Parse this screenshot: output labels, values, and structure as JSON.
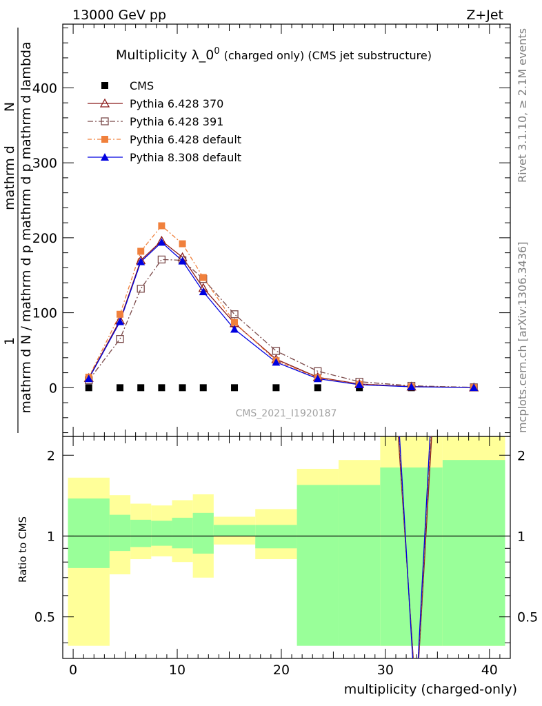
{
  "header": {
    "left_title": "13000 GeV pp",
    "right_title": "Z+Jet",
    "main_title": "Multiplicity λ_0",
    "main_title_sup": "0",
    "main_title_suffix": "(charged only) (CMS jet substructure)",
    "side_events": "Rivet 3.1.10, ≥ 2.1M events",
    "side_site": "mcplots.cern.ch [arXiv:1306.3436]",
    "watermark": "CMS_2021_I1920187"
  },
  "axes": {
    "xlabel": "multiplicity (charged-only)",
    "ylabel_top_line1": "1",
    "ylabel_top_line2": "mathrm d N / mathrm d p",
    "ylabel_top_line2b": "mathrm d p",
    "ylabel_top_line2c": "mathrm d lambda",
    "ylabel_top_num": "mathrm d",
    "ylabel_top_num2": "N",
    "ylabel_top_den": "mathrm d N / mathrm d p",
    "ylabel_top_full": "mathrm d N / mathrm d p  mathrm d p  mathrm d lambda",
    "ylabel_bottom": "Ratio to CMS",
    "x_ticks": [
      "0",
      "10",
      "20",
      "30",
      "40"
    ],
    "y_ticks_top": [
      "0",
      "100",
      "200",
      "300",
      "400"
    ],
    "y_ticks_ratio": [
      "0.5",
      "1",
      "2"
    ]
  },
  "chart_data": {
    "type": "line",
    "title": "Multiplicity λ_0^0 (charged only) (CMS jet substructure)",
    "xlabel": "multiplicity (charged-only)",
    "xlim": [
      -1,
      42
    ],
    "ylim": [
      -65,
      485
    ],
    "ratio_ylim": [
      0.35,
      2.35
    ],
    "series": [
      {
        "name": "CMS",
        "color": "#000000",
        "marker": "square",
        "x": [
          1.5,
          4.5,
          6.5,
          8.5,
          10.5,
          12.5,
          15.5,
          19.5,
          23.5,
          27.5,
          32.5,
          38.5
        ],
        "y": [
          0,
          0,
          0,
          0,
          0,
          0,
          0,
          0,
          0,
          0,
          0,
          0
        ]
      },
      {
        "name": "Pythia 6.428 370",
        "color": "#8b1a1a",
        "marker": "triangle-open",
        "x": [
          1.5,
          4.5,
          6.5,
          8.5,
          10.5,
          12.5,
          15.5,
          19.5,
          23.5,
          27.5,
          32.5,
          38.5
        ],
        "y": [
          13,
          90,
          170,
          196,
          174,
          133,
          86,
          38,
          14,
          5,
          1.5,
          0.3
        ]
      },
      {
        "name": "Pythia 6.428 391",
        "color": "#7b4a4a",
        "marker": "square-open",
        "x": [
          1.5,
          4.5,
          6.5,
          8.5,
          10.5,
          12.5,
          15.5,
          19.5,
          23.5,
          27.5,
          32.5,
          38.5
        ],
        "y": [
          10,
          65,
          132,
          171,
          170,
          145,
          98,
          49,
          22,
          8,
          2.5,
          0.5
        ]
      },
      {
        "name": "Pythia 6.428 default",
        "color": "#f0803c",
        "marker": "square-filled",
        "x": [
          1.5,
          4.5,
          6.5,
          8.5,
          10.5,
          12.5,
          15.5,
          19.5,
          23.5,
          27.5,
          32.5,
          38.5
        ],
        "y": [
          14,
          98,
          182,
          216,
          192,
          147,
          87,
          36,
          13,
          4.5,
          1.2,
          0.2
        ]
      },
      {
        "name": "Pythia 8.308 default",
        "color": "#0000e0",
        "marker": "triangle-filled",
        "x": [
          1.5,
          4.5,
          6.5,
          8.5,
          10.5,
          12.5,
          15.5,
          19.5,
          23.5,
          27.5,
          32.5,
          38.5
        ],
        "y": [
          12,
          88,
          168,
          194,
          169,
          128,
          78,
          34,
          12,
          4,
          1.2,
          0.2
        ]
      }
    ],
    "ratio_bands": {
      "edges": [
        -0.5,
        3.5,
        5.5,
        7.5,
        9.5,
        11.5,
        13.5,
        17.5,
        21.5,
        25.5,
        29.5,
        35.5,
        41.5
      ],
      "green_lo": [
        0.76,
        0.88,
        0.91,
        0.92,
        0.9,
        0.86,
        1.0,
        0.9,
        0.39,
        0.39,
        0.39,
        0.39
      ],
      "green_hi": [
        1.38,
        1.2,
        1.15,
        1.14,
        1.17,
        1.22,
        1.1,
        1.1,
        1.55,
        1.55,
        1.8,
        1.92
      ],
      "yellow_lo": [
        0.39,
        0.72,
        0.82,
        0.84,
        0.8,
        0.7,
        0.93,
        0.82,
        0.69,
        0.58,
        0.39,
        0.39
      ],
      "yellow_hi": [
        1.65,
        1.42,
        1.32,
        1.3,
        1.36,
        1.43,
        1.18,
        1.26,
        1.78,
        1.92,
        2.35,
        2.35
      ],
      "green_color": "#99ff99",
      "yellow_color": "#ffff99"
    }
  }
}
